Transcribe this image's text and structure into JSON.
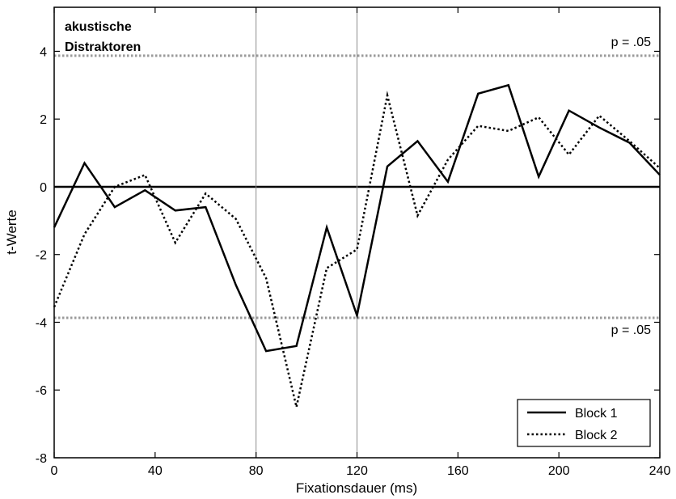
{
  "chart_data": {
    "type": "line",
    "title": "akustische\nDistraktoren",
    "title_lines": [
      "akustische",
      "Distraktoren"
    ],
    "xlabel": "Fixationsdauer (ms)",
    "ylabel": "t-Werte",
    "xlim": [
      0,
      240
    ],
    "ylim": [
      -8,
      5.3
    ],
    "xticks": [
      0,
      40,
      80,
      120,
      160,
      200,
      240
    ],
    "yticks": [
      -8,
      -6,
      -4,
      -2,
      0,
      2,
      4
    ],
    "grid": false,
    "legend_position": "bottom-right",
    "reference_lines": [
      {
        "axis": "y",
        "value": 3.87,
        "label": "p = .05",
        "style": "dotted",
        "color": "#9a9a9a"
      },
      {
        "axis": "y",
        "value": -3.87,
        "label": "p = .05",
        "style": "dotted",
        "color": "#9a9a9a"
      },
      {
        "axis": "y",
        "value": 0,
        "label": "",
        "style": "solid",
        "color": "#000000"
      },
      {
        "axis": "x",
        "value": 80,
        "label": "",
        "style": "solid-thin",
        "color": "#8c8c8c"
      },
      {
        "axis": "x",
        "value": 120,
        "label": "",
        "style": "solid-thin",
        "color": "#8c8c8c"
      }
    ],
    "series": [
      {
        "name": "Block 1",
        "style": "solid",
        "color": "#000000",
        "x": [
          0,
          12,
          24,
          36,
          48,
          60,
          72,
          84,
          96,
          108,
          120,
          132,
          144,
          156,
          168,
          180,
          192,
          204,
          216,
          228,
          240
        ],
        "y": [
          -1.2,
          0.7,
          -0.6,
          -0.1,
          -0.7,
          -0.6,
          -2.9,
          -4.85,
          -4.7,
          -1.2,
          -3.8,
          0.6,
          1.35,
          0.15,
          2.75,
          3.0,
          0.3,
          2.25,
          1.75,
          1.3,
          0.35
        ]
      },
      {
        "name": "Block 2",
        "style": "dotted",
        "color": "#000000",
        "x": [
          0,
          12,
          24,
          36,
          48,
          60,
          72,
          84,
          96,
          108,
          120,
          132,
          144,
          156,
          168,
          180,
          192,
          204,
          216,
          228,
          240
        ],
        "y": [
          -3.55,
          -1.4,
          0.0,
          0.35,
          -1.65,
          -0.2,
          -0.95,
          -2.7,
          -6.5,
          -2.4,
          -1.85,
          2.7,
          -0.85,
          0.8,
          1.8,
          1.65,
          2.05,
          0.95,
          2.1,
          1.35,
          0.55
        ]
      }
    ]
  }
}
